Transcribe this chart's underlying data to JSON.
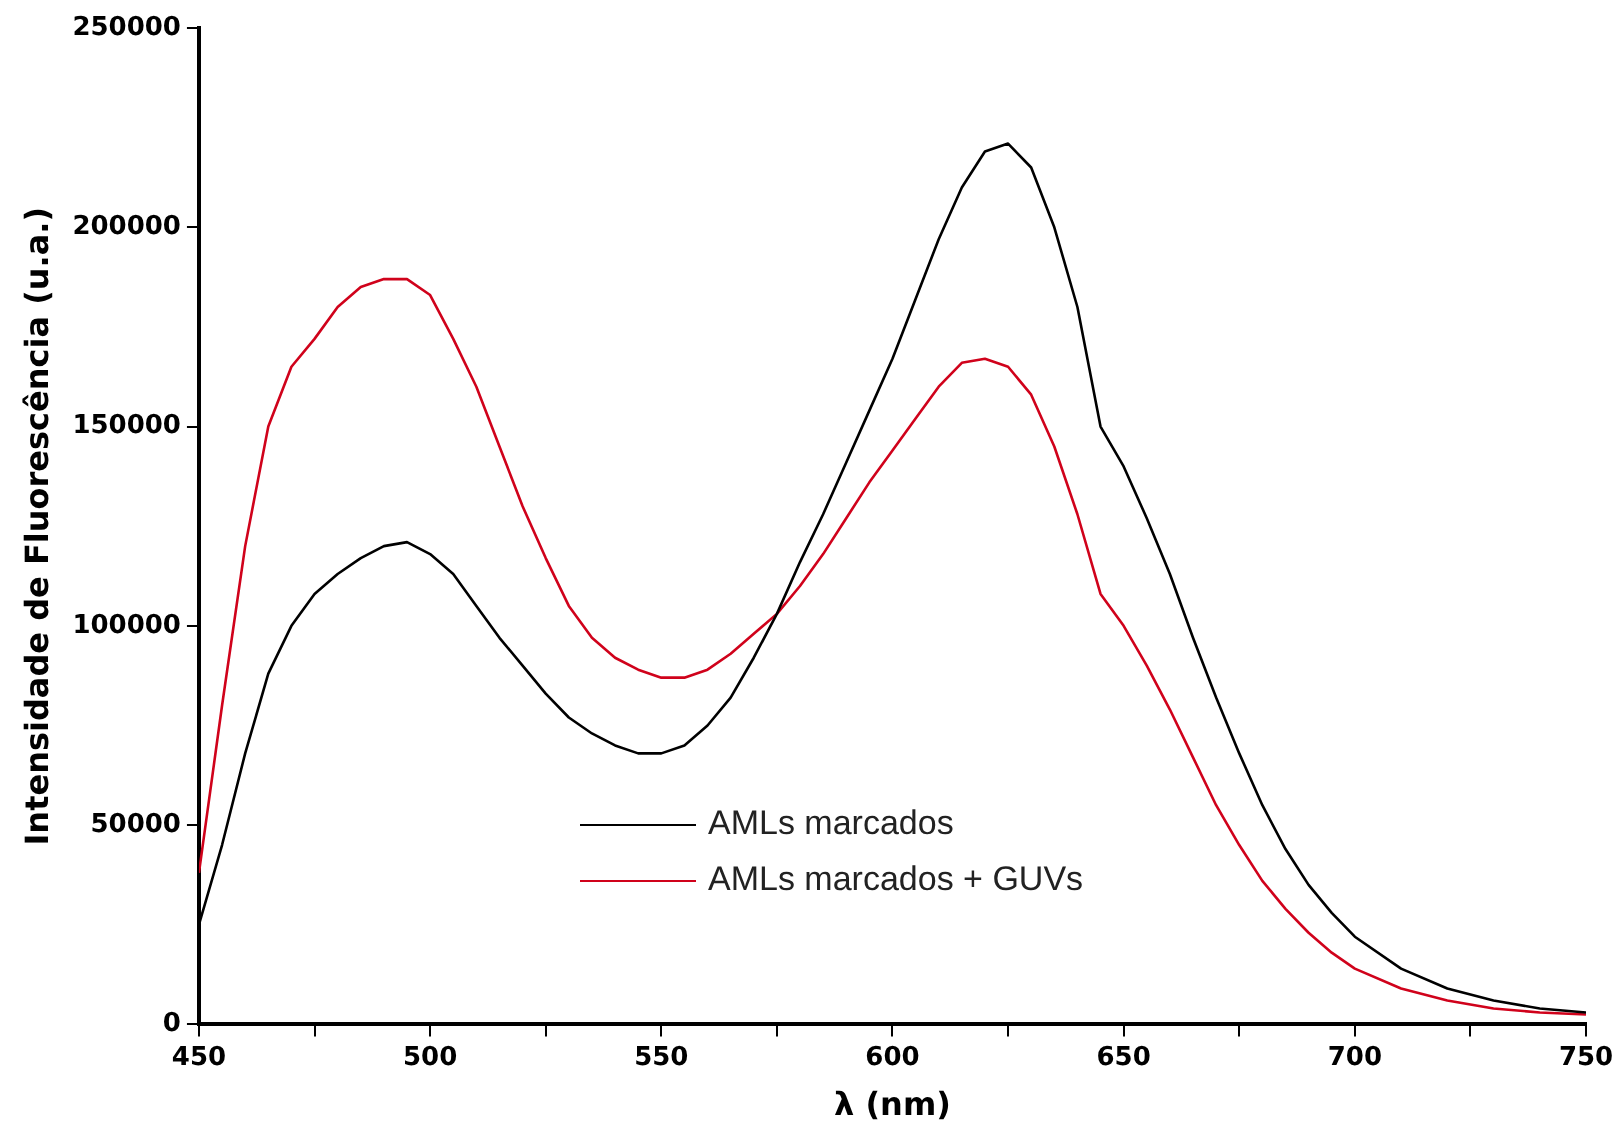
{
  "chart_data": {
    "type": "line",
    "xlabel": "λ (nm)",
    "ylabel": "Intensidade de Fluorescência (u.a.)",
    "x": [
      450,
      455,
      460,
      465,
      470,
      475,
      480,
      485,
      490,
      495,
      500,
      505,
      510,
      515,
      520,
      525,
      530,
      535,
      540,
      545,
      550,
      555,
      560,
      565,
      570,
      575,
      580,
      585,
      590,
      595,
      600,
      605,
      610,
      615,
      620,
      625,
      630,
      635,
      640,
      645,
      650,
      655,
      660,
      665,
      670,
      675,
      680,
      685,
      690,
      695,
      700,
      710,
      720,
      730,
      740,
      750
    ],
    "series": [
      {
        "name": "AMLs marcados",
        "color": "#000000",
        "values": [
          25000,
          45000,
          68000,
          88000,
          100000,
          108000,
          113000,
          117000,
          120000,
          121000,
          118000,
          113000,
          105000,
          97000,
          90000,
          83000,
          77000,
          73000,
          70000,
          68000,
          68000,
          70000,
          75000,
          82000,
          92000,
          103000,
          116000,
          128000,
          141000,
          154000,
          167000,
          182000,
          197000,
          210000,
          219000,
          221000,
          215000,
          200000,
          180000,
          150000,
          140000,
          127000,
          113000,
          97000,
          82000,
          68000,
          55000,
          44000,
          35000,
          28000,
          22000,
          14000,
          9000,
          6000,
          4000,
          3000
        ]
      },
      {
        "name": "AMLs marcados + GUVs",
        "color": "#d0021b",
        "values": [
          38000,
          80000,
          120000,
          150000,
          165000,
          172000,
          180000,
          185000,
          187000,
          187000,
          183000,
          172000,
          160000,
          145000,
          130000,
          117000,
          105000,
          97000,
          92000,
          89000,
          87000,
          87000,
          89000,
          93000,
          98000,
          103000,
          110000,
          118000,
          127000,
          136000,
          144000,
          152000,
          160000,
          166000,
          167000,
          165000,
          158000,
          145000,
          128000,
          108000,
          100000,
          90000,
          79000,
          67000,
          55000,
          45000,
          36000,
          29000,
          23000,
          18000,
          14000,
          9000,
          6000,
          4000,
          3000,
          2500
        ]
      }
    ],
    "xlim": [
      450,
      750
    ],
    "xticks": [
      450,
      {
        "value": 475,
        "label": null
      },
      500,
      {
        "value": 525,
        "label": null
      },
      550,
      {
        "value": 575,
        "label": null
      },
      600,
      {
        "value": 625,
        "label": null
      },
      650,
      {
        "value": 675,
        "label": null
      },
      700,
      {
        "value": 725,
        "label": null
      },
      750
    ],
    "ylim": [
      0,
      250000
    ],
    "yticks": [
      0,
      50000,
      100000,
      150000,
      200000,
      250000
    ],
    "grid": false,
    "legend": "bottom",
    "marker": "none",
    "line_style": "solid"
  }
}
